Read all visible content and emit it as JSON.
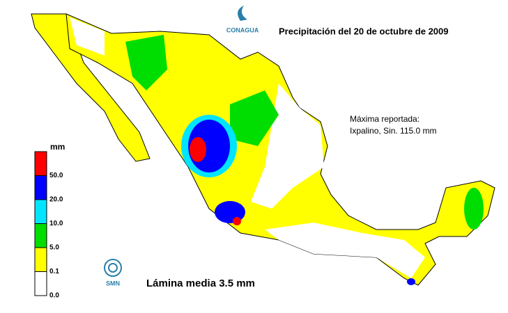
{
  "header": {
    "logo": "CONAGUA",
    "title": "Precipitación del 20 de octubre de 2009"
  },
  "annotation": [
    "Máxima reportada:",
    "Ixpalino, Sin. 115.0 mm"
  ],
  "legend": {
    "unit": "mm",
    "items": [
      {
        "label": "50.0",
        "color": "#ff0000"
      },
      {
        "label": "20.0",
        "color": "#0000ff"
      },
      {
        "label": "10.0",
        "color": "#00e5ff"
      },
      {
        "label": "5.0",
        "color": "#00dd00"
      },
      {
        "label": "0.1",
        "color": "#ffff00"
      },
      {
        "label": "0.0",
        "color": "#ffffff"
      }
    ]
  },
  "footer": {
    "logo": "SMN",
    "summary": "Lámina media 3.5 mm"
  }
}
